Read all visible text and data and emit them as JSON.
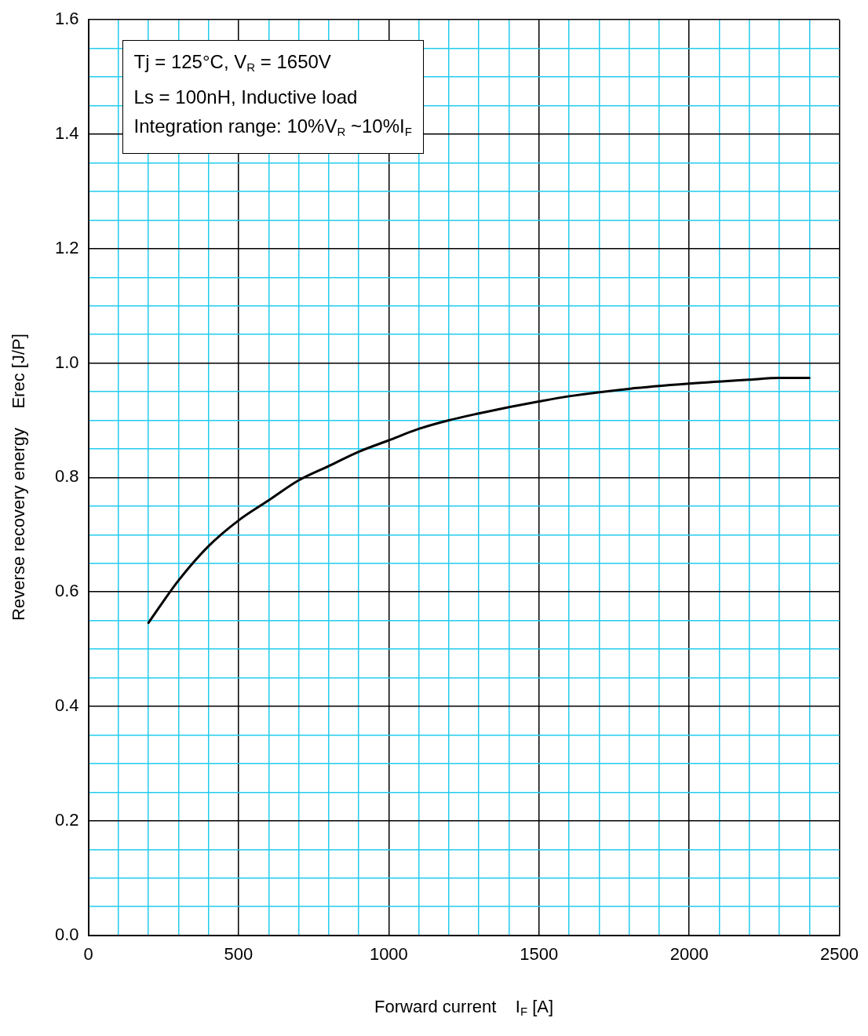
{
  "chart_data": {
    "type": "line",
    "xlabel": "Forward current    I$_{F}$ [A]",
    "ylabel": "Reverse recovery energy    Erec [J/P]",
    "annotations": [
      "Tj = 125°C, V$_{R}$ = 1650V",
      "Ls = 100nH, Inductive load",
      "Integration range: 10%V$_{R}$ ~10%I$_{F}$"
    ],
    "x": [
      200,
      300,
      400,
      500,
      600,
      700,
      800,
      900,
      1000,
      1100,
      1200,
      1300,
      1400,
      1500,
      1600,
      1800,
      2000,
      2200,
      2300,
      2400
    ],
    "series": [
      {
        "color": "#000000",
        "values": [
          0.546,
          0.62,
          0.68,
          0.725,
          0.76,
          0.795,
          0.82,
          0.845,
          0.865,
          0.885,
          0.9,
          0.912,
          0.923,
          0.933,
          0.942,
          0.955,
          0.964,
          0.971,
          0.974,
          0.974
        ]
      }
    ],
    "xlim": [
      0,
      2500
    ],
    "xticks": [
      0,
      {
        "value": 100,
        "label": null
      },
      {
        "value": 200,
        "label": null
      },
      {
        "value": 300,
        "label": null
      },
      {
        "value": 400,
        "label": null
      },
      500,
      {
        "value": 600,
        "label": null
      },
      {
        "value": 700,
        "label": null
      },
      {
        "value": 800,
        "label": null
      },
      {
        "value": 900,
        "label": null
      },
      1000,
      {
        "value": 1100,
        "label": null
      },
      {
        "value": 1200,
        "label": null
      },
      {
        "value": 1300,
        "label": null
      },
      {
        "value": 1400,
        "label": null
      },
      1500,
      {
        "value": 1600,
        "label": null
      },
      {
        "value": 1700,
        "label": null
      },
      {
        "value": 1800,
        "label": null
      },
      {
        "value": 1900,
        "label": null
      },
      2000,
      {
        "value": 2100,
        "label": null
      },
      {
        "value": 2200,
        "label": null
      },
      {
        "value": 2300,
        "label": null
      },
      {
        "value": 2400,
        "label": null
      },
      2500
    ],
    "ylim": [
      0,
      1.6
    ],
    "yticks": [
      {
        "value": 0,
        "label": "0.0"
      },
      {
        "value": 0.05,
        "label": null
      },
      {
        "value": 0.1,
        "label": null
      },
      {
        "value": 0.15,
        "label": null
      },
      {
        "value": 0.2,
        "label": "0.2"
      },
      {
        "value": 0.25,
        "label": null
      },
      {
        "value": 0.3,
        "label": null
      },
      {
        "value": 0.35,
        "label": null
      },
      {
        "value": 0.4,
        "label": "0.4"
      },
      {
        "value": 0.45,
        "label": null
      },
      {
        "value": 0.5,
        "label": null
      },
      {
        "value": 0.55,
        "label": null
      },
      {
        "value": 0.6,
        "label": "0.6"
      },
      {
        "value": 0.65,
        "label": null
      },
      {
        "value": 0.7,
        "label": null
      },
      {
        "value": 0.75,
        "label": null
      },
      {
        "value": 0.8,
        "label": "0.8"
      },
      {
        "value": 0.85,
        "label": null
      },
      {
        "value": 0.9,
        "label": null
      },
      {
        "value": 0.95,
        "label": null
      },
      {
        "value": 1.0,
        "label": "1.0"
      },
      {
        "value": 1.05,
        "label": null
      },
      {
        "value": 1.1,
        "label": null
      },
      {
        "value": 1.15,
        "label": null
      },
      {
        "value": 1.2,
        "label": "1.2"
      },
      {
        "value": 1.25,
        "label": null
      },
      {
        "value": 1.3,
        "label": null
      },
      {
        "value": 1.35,
        "label": null
      },
      {
        "value": 1.4,
        "label": "1.4"
      },
      {
        "value": 1.45,
        "label": null
      },
      {
        "value": 1.5,
        "label": null
      },
      {
        "value": 1.55,
        "label": null
      },
      {
        "value": 1.6,
        "label": "1.6"
      }
    ],
    "grid": true,
    "legend": false,
    "marker": "none",
    "line_style": "solid"
  }
}
